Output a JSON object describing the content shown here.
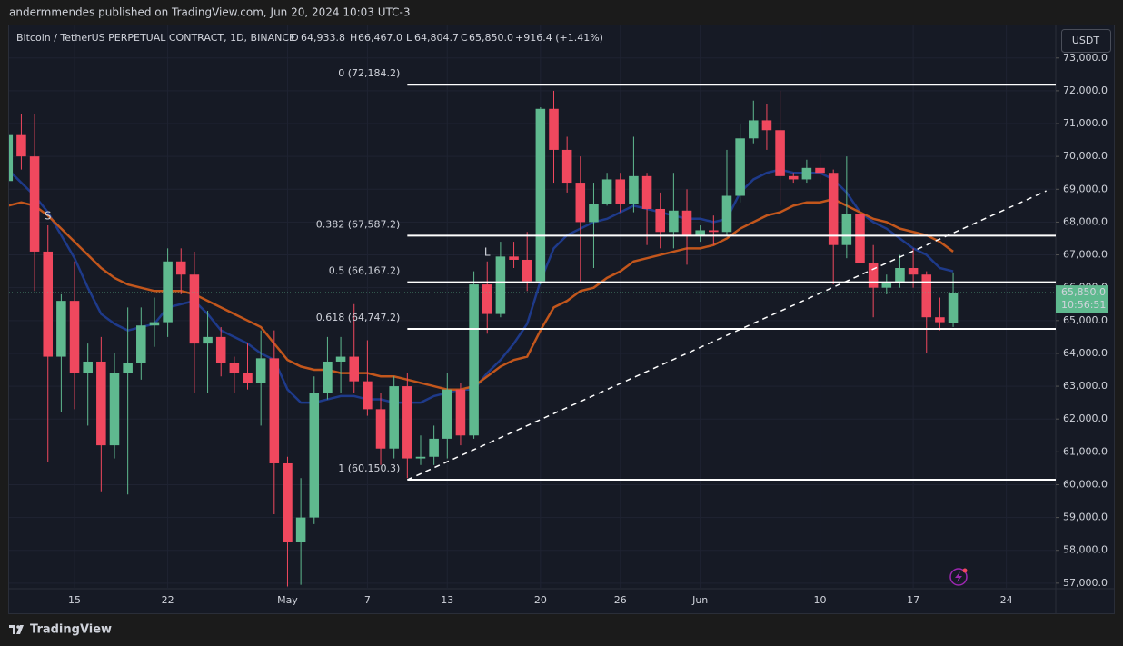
{
  "header": {
    "published": "andermmendes published on TradingView.com, Jun 20, 2024 10:03 UTC-3",
    "brand": "TradingView",
    "currency": "USDT"
  },
  "chart_data": {
    "type": "candlestick",
    "title": "Bitcoin / TetherUS PERPETUAL CONTRACT, 1D, BINANCE",
    "legend_values": [
      {
        "key": "O",
        "label": "64,933.8"
      },
      {
        "key": "H",
        "label": "66,467.0"
      },
      {
        "key": "L",
        "label": "64,804.7"
      },
      {
        "key": "C",
        "label": "65,850.0"
      }
    ],
    "change": "+916.4 (+1.41%)",
    "up_color": "#5fb98f",
    "down_color": "#f0485e",
    "x": [
      "2024-04-10",
      "2024-04-11",
      "2024-04-12",
      "2024-04-13",
      "2024-04-14",
      "2024-04-15",
      "2024-04-16",
      "2024-04-17",
      "2024-04-18",
      "2024-04-19",
      "2024-04-20",
      "2024-04-21",
      "2024-04-22",
      "2024-04-23",
      "2024-04-24",
      "2024-04-25",
      "2024-04-26",
      "2024-04-27",
      "2024-04-28",
      "2024-04-29",
      "2024-04-30",
      "2024-05-01",
      "2024-05-02",
      "2024-05-03",
      "2024-05-04",
      "2024-05-05",
      "2024-05-06",
      "2024-05-07",
      "2024-05-08",
      "2024-05-09",
      "2024-05-10",
      "2024-05-11",
      "2024-05-12",
      "2024-05-13",
      "2024-05-14",
      "2024-05-15",
      "2024-05-16",
      "2024-05-17",
      "2024-05-18",
      "2024-05-19",
      "2024-05-20",
      "2024-05-21",
      "2024-05-22",
      "2024-05-23",
      "2024-05-24",
      "2024-05-25",
      "2024-05-26",
      "2024-05-27",
      "2024-05-28",
      "2024-05-29",
      "2024-05-30",
      "2024-05-31",
      "2024-06-01",
      "2024-06-02",
      "2024-06-03",
      "2024-06-04",
      "2024-06-05",
      "2024-06-06",
      "2024-06-07",
      "2024-06-08",
      "2024-06-09",
      "2024-06-10",
      "2024-06-11",
      "2024-06-12",
      "2024-06-13",
      "2024-06-14",
      "2024-06-15",
      "2024-06-16",
      "2024-06-17",
      "2024-06-18",
      "2024-06-19",
      "2024-06-20"
    ],
    "open": [
      69250,
      70650,
      70000,
      67100,
      63900,
      65600,
      63400,
      63750,
      61200,
      63400,
      63700,
      64850,
      64950,
      66800,
      66400,
      64300,
      64500,
      63700,
      63400,
      63100,
      63850,
      60650,
      58250,
      59000,
      62800,
      63750,
      63900,
      63150,
      62300,
      61100,
      63000,
      60800,
      60850,
      61400,
      62900,
      61500,
      66100,
      65200,
      66950,
      66850,
      66200,
      71450,
      70200,
      69200,
      68000,
      68550,
      69300,
      68550,
      69400,
      68400,
      67700,
      68350,
      67600,
      67750,
      67700,
      68800,
      70550,
      71100,
      70800,
      69400,
      69300,
      69650,
      69500,
      67300,
      68250,
      66750,
      66000,
      66150,
      66600,
      66400,
      65100,
      64933.8
    ],
    "high": [
      71000,
      71300,
      71300,
      67900,
      65800,
      66800,
      64300,
      64500,
      64000,
      65400,
      65400,
      65700,
      67200,
      67200,
      67100,
      65300,
      64800,
      63900,
      64300,
      64700,
      64700,
      60850,
      60200,
      63300,
      64500,
      64500,
      65500,
      64400,
      62800,
      63300,
      63400,
      61500,
      61800,
      63400,
      63100,
      66500,
      66800,
      67400,
      67400,
      67700,
      71500,
      72000,
      70600,
      70000,
      69200,
      69500,
      69500,
      70600,
      69500,
      68900,
      69500,
      69000,
      67900,
      68200,
      70200,
      71000,
      71700,
      71600,
      72000,
      69500,
      69900,
      70100,
      69600,
      70000,
      68400,
      67300,
      66400,
      67000,
      67200,
      66500,
      65700,
      66467
    ],
    "low": [
      68500,
      69600,
      65900,
      60700,
      62200,
      62300,
      61800,
      59800,
      60800,
      59700,
      63200,
      64200,
      64500,
      65800,
      62800,
      62800,
      63300,
      62800,
      62900,
      61800,
      59100,
      56900,
      56950,
      58800,
      62600,
      62800,
      62800,
      62100,
      60600,
      60800,
      60200,
      60600,
      60600,
      60800,
      61200,
      61400,
      64600,
      65100,
      66600,
      65900,
      66100,
      69200,
      68900,
      66200,
      66600,
      68500,
      68300,
      68300,
      67300,
      67200,
      67200,
      66700,
      67400,
      67300,
      67600,
      68600,
      70400,
      70200,
      68500,
      69200,
      69200,
      69200,
      66100,
      66900,
      66300,
      65100,
      65800,
      66000,
      66000,
      64000,
      64700,
      64804.7
    ],
    "close": [
      70650,
      70000,
      67100,
      63900,
      65600,
      63400,
      63750,
      61200,
      63400,
      63700,
      64850,
      64950,
      66800,
      66400,
      64300,
      64500,
      63700,
      63400,
      63100,
      63850,
      60650,
      58250,
      59000,
      62800,
      63750,
      63900,
      63150,
      62300,
      61100,
      63000,
      60800,
      60850,
      61400,
      62900,
      61500,
      66100,
      65200,
      66950,
      66850,
      66200,
      71450,
      70200,
      69200,
      68000,
      68550,
      69300,
      68550,
      69400,
      68400,
      67700,
      68350,
      67600,
      67750,
      67700,
      68800,
      70550,
      71100,
      70800,
      69400,
      69300,
      69650,
      69500,
      67300,
      68250,
      66750,
      66000,
      66150,
      66600,
      66400,
      65100,
      64950,
      65850
    ],
    "series": [
      {
        "color": "#1e3a8a",
        "values": [
          69600,
          69200,
          68800,
          68300,
          67600,
          66900,
          66000,
          65200,
          64900,
          64700,
          64800,
          64900,
          65400,
          65500,
          65600,
          65200,
          64700,
          64500,
          64300,
          64000,
          63800,
          62900,
          62500,
          62500,
          62600,
          62700,
          62700,
          62600,
          62600,
          62500,
          62500,
          62500,
          62700,
          62800,
          62900,
          62900,
          63400,
          63800,
          64300,
          64900,
          66200,
          67200,
          67600,
          67800,
          68000,
          68100,
          68300,
          68500,
          68400,
          68300,
          68200,
          68100,
          68100,
          68000,
          68100,
          68900,
          69300,
          69500,
          69600,
          69500,
          69500,
          69500,
          69300,
          68900,
          68300,
          68000,
          67800,
          67500,
          67200,
          67000,
          66600,
          66500
        ]
      },
      {
        "color": "#c2561c",
        "values": [
          68500,
          68600,
          68500,
          68200,
          67800,
          67400,
          67000,
          66600,
          66300,
          66100,
          66000,
          65900,
          65900,
          65900,
          65800,
          65600,
          65400,
          65200,
          65000,
          64800,
          64300,
          63800,
          63600,
          63500,
          63500,
          63400,
          63400,
          63400,
          63300,
          63300,
          63200,
          63100,
          63000,
          62900,
          62900,
          63000,
          63300,
          63600,
          63800,
          63900,
          64700,
          65400,
          65600,
          65900,
          66000,
          66300,
          66500,
          66800,
          66900,
          67000,
          67100,
          67200,
          67200,
          67300,
          67500,
          67800,
          68000,
          68200,
          68300,
          68500,
          68600,
          68600,
          68700,
          68500,
          68300,
          68100,
          68000,
          67800,
          67700,
          67600,
          67400,
          67100
        ]
      }
    ],
    "markers": [
      {
        "text": "S",
        "x": "2024-04-13",
        "color": "#f0485e"
      },
      {
        "text": "L",
        "x": "2024-05-16",
        "color": "#5fb98f"
      }
    ],
    "fib_levels": [
      {
        "label": "0 (72,184.2)",
        "value": 72184.2
      },
      {
        "label": "0.382 (67,587.2)",
        "value": 67587.2
      },
      {
        "label": "0.5 (66,167.2)",
        "value": 66167.2
      },
      {
        "label": "0.618 (64,747.2)",
        "value": 64747.2
      },
      {
        "label": "1 (60,150.3)",
        "value": 60150.3
      }
    ],
    "fib_start": "2024-05-10",
    "trendline": {
      "x": [
        "2024-05-10",
        "2024-06-27"
      ],
      "y": [
        60150,
        68950
      ]
    },
    "last_price": {
      "value": 65850,
      "label": "65,850.0",
      "countdown": "10:56:51"
    },
    "xlim": [
      "2024-04-10T02:00",
      "2024-06-27T17:00"
    ],
    "xticks": [
      {
        "value": "2024-04-15",
        "label": "15"
      },
      {
        "value": "2024-04-22",
        "label": "22"
      },
      {
        "value": "2024-05-01",
        "label": "May"
      },
      {
        "value": "2024-05-07",
        "label": "7"
      },
      {
        "value": "2024-05-13",
        "label": "13"
      },
      {
        "value": "2024-05-20",
        "label": "20"
      },
      {
        "value": "2024-05-26",
        "label": "26"
      },
      {
        "value": "2024-06-01",
        "label": "Jun"
      },
      {
        "value": "2024-06-10",
        "label": "10"
      },
      {
        "value": "2024-06-17",
        "label": "17"
      },
      {
        "value": "2024-06-24",
        "label": "24"
      }
    ],
    "ylim": [
      56830,
      73990
    ],
    "yticks": [
      {
        "value": 57000,
        "label": "57,000.0"
      },
      {
        "value": 58000,
        "label": "58,000.0"
      },
      {
        "value": 59000,
        "label": "59,000.0"
      },
      {
        "value": 60000,
        "label": "60,000.0"
      },
      {
        "value": 61000,
        "label": "61,000.0"
      },
      {
        "value": 62000,
        "label": "62,000.0"
      },
      {
        "value": 63000,
        "label": "63,000.0"
      },
      {
        "value": 64000,
        "label": "64,000.0"
      },
      {
        "value": 65000,
        "label": "65,000.0"
      },
      {
        "value": 66000,
        "label": "66,000.0"
      },
      {
        "value": 67000,
        "label": "67,000.0"
      },
      {
        "value": 68000,
        "label": "68,000.0"
      },
      {
        "value": 69000,
        "label": "69,000.0"
      },
      {
        "value": 70000,
        "label": "70,000.0"
      },
      {
        "value": 71000,
        "label": "71,000.0"
      },
      {
        "value": 72000,
        "label": "72,000.0"
      },
      {
        "value": 73000,
        "label": "73,000.0"
      }
    ],
    "grid": true
  }
}
